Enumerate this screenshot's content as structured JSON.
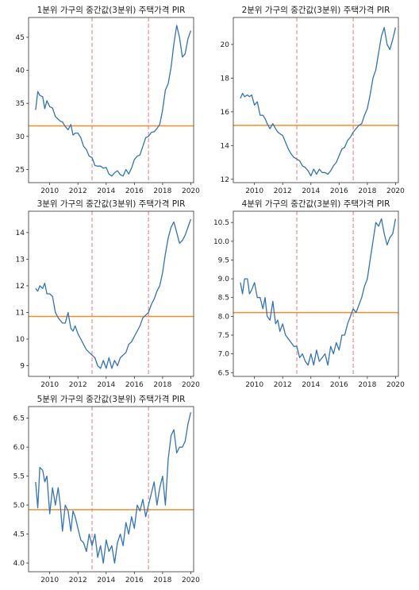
{
  "chart_data": [
    {
      "type": "line",
      "title": "1분위 가구의 중간값(3분위) 주택가격 PIR",
      "xlim": [
        2008.5,
        2020.2
      ],
      "ylim": [
        23,
        48
      ],
      "xticks": [
        2010,
        2012,
        2014,
        2016,
        2018,
        2020
      ],
      "yticks": [
        25,
        30,
        35,
        40,
        45
      ],
      "mean_line": 31.6,
      "vlines": [
        2013.0,
        2017.0
      ],
      "colors": {
        "series": "#3274b5",
        "mean": "#f28e2b",
        "vline": "#e8797a"
      },
      "series": [
        {
          "x": [
            2009.0,
            2009.15,
            2009.3,
            2009.5,
            2009.65,
            2009.8,
            2010.0,
            2010.2,
            2010.4,
            2010.6,
            2010.75,
            2010.9,
            2011.1,
            2011.3,
            2011.5,
            2011.65,
            2011.8,
            2012.0,
            2012.2,
            2012.4,
            2012.6,
            2012.8,
            2013.0,
            2013.2,
            2013.4,
            2013.6,
            2013.8,
            2014.0,
            2014.2,
            2014.4,
            2014.6,
            2014.8,
            2015.0,
            2015.2,
            2015.4,
            2015.6,
            2015.8,
            2016.0,
            2016.2,
            2016.4,
            2016.6,
            2016.8,
            2017.0,
            2017.2,
            2017.4,
            2017.6,
            2017.8,
            2018.0,
            2018.2,
            2018.4,
            2018.6,
            2018.8,
            2019.0,
            2019.2,
            2019.4,
            2019.6,
            2019.8,
            2020.0
          ],
          "values": [
            34.0,
            36.8,
            36.2,
            36.0,
            34.2,
            35.4,
            34.5,
            34.3,
            33.0,
            32.6,
            32.3,
            32.2,
            31.5,
            31.0,
            31.8,
            30.2,
            30.5,
            30.5,
            29.8,
            28.5,
            28.0,
            27.0,
            26.8,
            25.6,
            25.5,
            25.5,
            25.2,
            25.3,
            24.3,
            24.0,
            24.5,
            24.8,
            24.2,
            24.0,
            25.0,
            24.3,
            25.2,
            26.5,
            27.0,
            27.2,
            28.5,
            29.8,
            30.0,
            30.6,
            30.7,
            31.2,
            31.8,
            34.0,
            37.0,
            38.0,
            40.5,
            44.0,
            46.8,
            45.0,
            42.0,
            42.5,
            44.8,
            46.0
          ]
        }
      ]
    },
    {
      "type": "line",
      "title": "2분위 가구의 중간값(3분위) 주택가격 PIR",
      "xlim": [
        2008.5,
        2020.2
      ],
      "ylim": [
        11.8,
        21.6
      ],
      "xticks": [
        2010,
        2012,
        2014,
        2016,
        2018,
        2020
      ],
      "yticks": [
        12,
        14,
        16,
        18,
        20
      ],
      "mean_line": 15.2,
      "vlines": [
        2013.0,
        2017.0
      ],
      "colors": {
        "series": "#3274b5",
        "mean": "#f28e2b",
        "vline": "#e8797a"
      },
      "series": [
        {
          "x": [
            2009.0,
            2009.15,
            2009.3,
            2009.5,
            2009.65,
            2009.8,
            2010.0,
            2010.2,
            2010.4,
            2010.6,
            2010.75,
            2010.9,
            2011.1,
            2011.3,
            2011.5,
            2011.65,
            2011.8,
            2012.0,
            2012.2,
            2012.4,
            2012.6,
            2012.8,
            2013.0,
            2013.2,
            2013.4,
            2013.6,
            2013.8,
            2014.0,
            2014.2,
            2014.4,
            2014.6,
            2014.8,
            2015.0,
            2015.2,
            2015.4,
            2015.6,
            2015.8,
            2016.0,
            2016.2,
            2016.4,
            2016.6,
            2016.8,
            2017.0,
            2017.2,
            2017.4,
            2017.6,
            2017.8,
            2018.0,
            2018.2,
            2018.4,
            2018.6,
            2018.8,
            2019.0,
            2019.2,
            2019.4,
            2019.6,
            2019.8,
            2020.0
          ],
          "values": [
            16.8,
            17.1,
            16.9,
            17.0,
            16.9,
            17.0,
            16.4,
            16.6,
            15.8,
            15.8,
            15.6,
            15.3,
            15.0,
            15.3,
            15.0,
            14.8,
            14.7,
            14.6,
            14.2,
            13.8,
            13.5,
            13.3,
            13.2,
            13.1,
            12.8,
            12.7,
            12.5,
            12.2,
            12.6,
            12.3,
            12.6,
            12.4,
            12.4,
            12.3,
            12.5,
            12.8,
            13.0,
            13.4,
            13.8,
            13.9,
            14.3,
            14.5,
            14.8,
            15.0,
            15.2,
            15.3,
            15.8,
            16.2,
            17.0,
            18.0,
            18.5,
            19.5,
            20.5,
            21.0,
            20.0,
            19.7,
            20.3,
            21.0
          ]
        }
      ]
    },
    {
      "type": "line",
      "title": "3분위 가구의 중간값(3분위) 주택가격 PIR",
      "xlim": [
        2008.5,
        2020.2
      ],
      "ylim": [
        8.6,
        14.8
      ],
      "xticks": [
        2010,
        2012,
        2014,
        2016,
        2018,
        2020
      ],
      "yticks": [
        9,
        10,
        11,
        12,
        13,
        14
      ],
      "mean_line": 10.85,
      "vlines": [
        2013.0,
        2017.0
      ],
      "colors": {
        "series": "#3274b5",
        "mean": "#f28e2b",
        "vline": "#e8797a"
      },
      "series": [
        {
          "x": [
            2009.0,
            2009.15,
            2009.3,
            2009.5,
            2009.65,
            2009.8,
            2010.0,
            2010.2,
            2010.4,
            2010.6,
            2010.75,
            2010.9,
            2011.1,
            2011.3,
            2011.5,
            2011.65,
            2011.8,
            2012.0,
            2012.2,
            2012.4,
            2012.6,
            2012.8,
            2013.0,
            2013.2,
            2013.4,
            2013.6,
            2013.8,
            2014.0,
            2014.2,
            2014.4,
            2014.6,
            2014.8,
            2015.0,
            2015.2,
            2015.4,
            2015.6,
            2015.8,
            2016.0,
            2016.2,
            2016.4,
            2016.6,
            2016.8,
            2017.0,
            2017.2,
            2017.4,
            2017.6,
            2017.8,
            2018.0,
            2018.2,
            2018.4,
            2018.6,
            2018.8,
            2019.0,
            2019.2,
            2019.4,
            2019.6,
            2019.8,
            2020.0
          ],
          "values": [
            11.9,
            11.8,
            12.0,
            11.9,
            12.1,
            11.7,
            11.7,
            11.6,
            11.0,
            10.8,
            10.7,
            10.6,
            10.6,
            11.0,
            10.4,
            10.3,
            10.5,
            10.2,
            10.0,
            9.8,
            9.6,
            9.5,
            9.4,
            9.3,
            9.0,
            8.9,
            9.2,
            8.9,
            9.3,
            8.9,
            9.2,
            9.0,
            9.3,
            9.4,
            9.5,
            9.8,
            9.9,
            10.1,
            10.3,
            10.5,
            10.8,
            10.9,
            11.0,
            11.3,
            11.5,
            11.8,
            12.0,
            12.5,
            13.2,
            13.8,
            14.2,
            14.4,
            14.0,
            13.6,
            13.7,
            13.9,
            14.2,
            14.5
          ]
        }
      ]
    },
    {
      "type": "line",
      "title": "4분위 가구의 중간값(3분위) 주택가격 PIR",
      "xlim": [
        2008.5,
        2020.2
      ],
      "ylim": [
        6.4,
        10.8
      ],
      "xticks": [
        2010,
        2012,
        2014,
        2016,
        2018,
        2020
      ],
      "yticks": [
        6.5,
        7.0,
        7.5,
        8.0,
        8.5,
        9.0,
        9.5,
        10.0,
        10.5
      ],
      "mean_line": 8.1,
      "vlines": [
        2013.0,
        2017.0
      ],
      "colors": {
        "series": "#3274b5",
        "mean": "#f28e2b",
        "vline": "#e8797a"
      },
      "series": [
        {
          "x": [
            2009.0,
            2009.15,
            2009.3,
            2009.5,
            2009.65,
            2009.8,
            2010.0,
            2010.2,
            2010.4,
            2010.6,
            2010.75,
            2010.9,
            2011.1,
            2011.3,
            2011.5,
            2011.65,
            2011.8,
            2012.0,
            2012.2,
            2012.4,
            2012.6,
            2012.8,
            2013.0,
            2013.2,
            2013.4,
            2013.6,
            2013.8,
            2014.0,
            2014.2,
            2014.4,
            2014.6,
            2014.8,
            2015.0,
            2015.2,
            2015.4,
            2015.6,
            2015.8,
            2016.0,
            2016.2,
            2016.4,
            2016.6,
            2016.8,
            2017.0,
            2017.2,
            2017.4,
            2017.6,
            2017.8,
            2018.0,
            2018.2,
            2018.4,
            2018.6,
            2018.8,
            2019.0,
            2019.2,
            2019.4,
            2019.6,
            2019.8,
            2020.0
          ],
          "values": [
            8.9,
            8.6,
            9.0,
            9.0,
            8.6,
            8.7,
            8.9,
            8.5,
            8.5,
            8.2,
            8.5,
            8.0,
            7.9,
            8.4,
            7.8,
            7.9,
            7.6,
            7.8,
            7.5,
            7.4,
            7.3,
            7.2,
            7.2,
            6.9,
            7.0,
            6.8,
            6.7,
            7.0,
            6.7,
            7.1,
            6.8,
            6.9,
            7.0,
            6.7,
            7.2,
            7.0,
            7.3,
            7.1,
            7.5,
            7.5,
            7.8,
            8.0,
            8.2,
            8.1,
            8.3,
            8.5,
            8.8,
            9.0,
            9.5,
            10.0,
            10.5,
            10.4,
            10.6,
            10.2,
            9.9,
            10.1,
            10.2,
            10.6
          ]
        }
      ]
    },
    {
      "type": "line",
      "title": "5분위 가구의 중간값(3분위) 주택가격 PIR",
      "xlim": [
        2008.5,
        2020.2
      ],
      "ylim": [
        3.85,
        6.7
      ],
      "xticks": [
        2010,
        2012,
        2014,
        2016,
        2018,
        2020
      ],
      "yticks": [
        4.0,
        4.5,
        5.0,
        5.5,
        6.0,
        6.5
      ],
      "mean_line": 4.92,
      "vlines": [
        2013.0,
        2017.0
      ],
      "colors": {
        "series": "#3274b5",
        "mean": "#f28e2b",
        "vline": "#e8797a"
      },
      "series": [
        {
          "x": [
            2009.0,
            2009.15,
            2009.3,
            2009.5,
            2009.65,
            2009.8,
            2010.0,
            2010.2,
            2010.4,
            2010.6,
            2010.75,
            2010.9,
            2011.1,
            2011.3,
            2011.5,
            2011.65,
            2011.8,
            2012.0,
            2012.2,
            2012.4,
            2012.6,
            2012.8,
            2013.0,
            2013.2,
            2013.4,
            2013.6,
            2013.8,
            2014.0,
            2014.2,
            2014.4,
            2014.6,
            2014.8,
            2015.0,
            2015.2,
            2015.4,
            2015.6,
            2015.8,
            2016.0,
            2016.2,
            2016.4,
            2016.6,
            2016.8,
            2017.0,
            2017.2,
            2017.4,
            2017.6,
            2017.8,
            2018.0,
            2018.2,
            2018.4,
            2018.6,
            2018.8,
            2019.0,
            2019.2,
            2019.4,
            2019.6,
            2019.8,
            2020.0
          ],
          "values": [
            5.4,
            4.95,
            5.65,
            5.6,
            5.4,
            5.5,
            4.85,
            5.3,
            5.0,
            5.3,
            5.0,
            4.55,
            5.0,
            4.9,
            4.55,
            4.9,
            4.8,
            4.6,
            4.4,
            4.35,
            4.2,
            4.5,
            4.3,
            4.5,
            4.1,
            4.3,
            4.0,
            4.4,
            4.2,
            4.3,
            4.0,
            4.35,
            4.5,
            4.3,
            4.7,
            4.5,
            4.8,
            4.6,
            5.0,
            4.9,
            5.1,
            4.8,
            5.0,
            5.2,
            5.4,
            5.0,
            5.3,
            5.5,
            5.0,
            5.8,
            6.2,
            6.3,
            5.9,
            6.0,
            6.0,
            6.1,
            6.4,
            6.6
          ]
        }
      ]
    }
  ]
}
